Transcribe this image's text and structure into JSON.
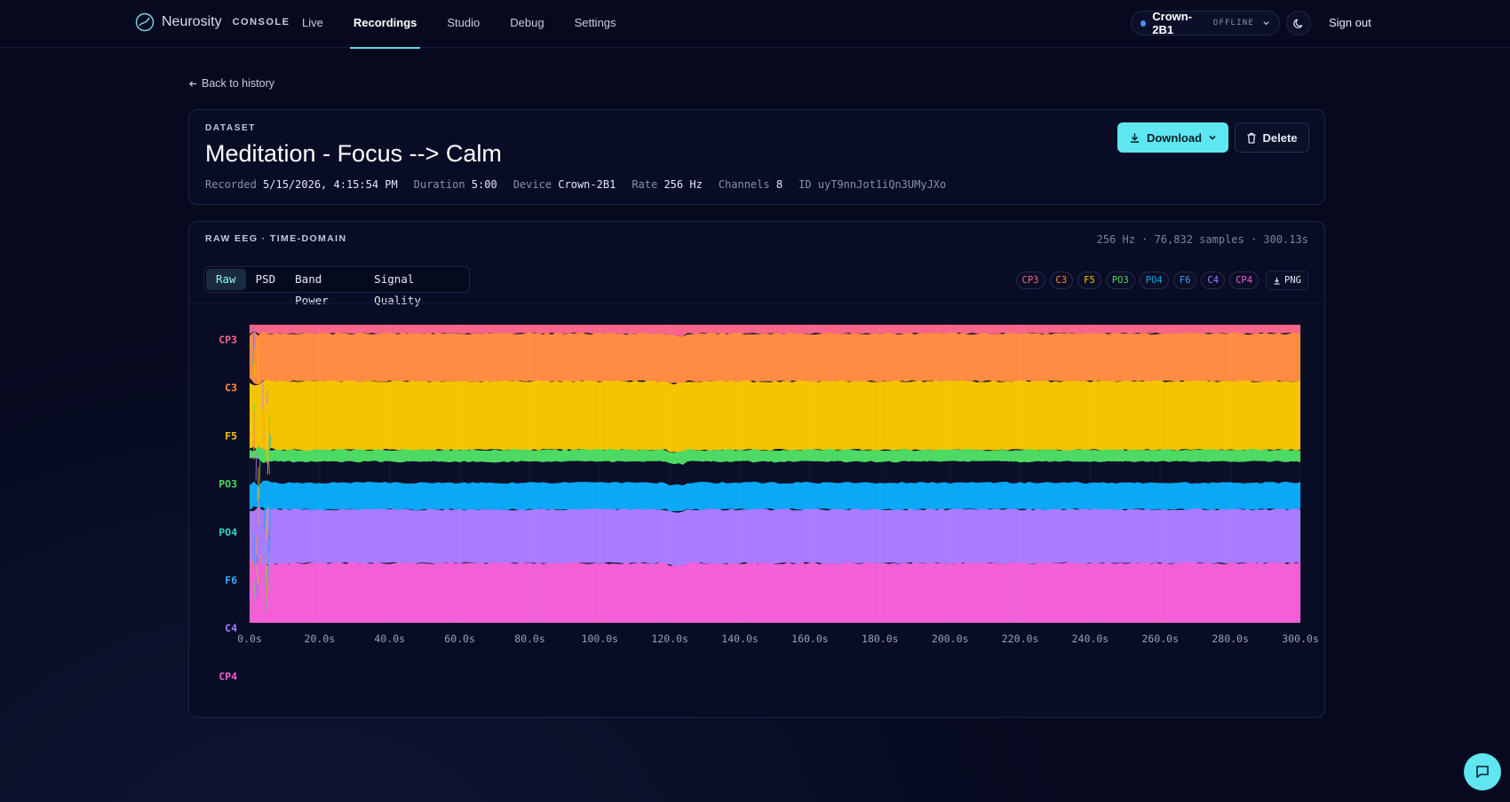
{
  "nav": {
    "brand": "Neurosity",
    "brand_suffix": "CONSOLE",
    "items": [
      {
        "label": "Live",
        "active": false
      },
      {
        "label": "Recordings",
        "active": true
      },
      {
        "label": "Studio",
        "active": false
      },
      {
        "label": "Debug",
        "active": false
      },
      {
        "label": "Settings",
        "active": false
      }
    ],
    "device": {
      "name": "Crown-2B1",
      "status": "OFFLINE"
    },
    "signout": "Sign out"
  },
  "back_link": "Back to history",
  "dataset": {
    "eyebrow": "DATASET",
    "title": "Meditation - Focus --> Calm",
    "meta": {
      "recorded_label": "Recorded",
      "recorded": "5/15/2026, 4:15:54 PM",
      "duration_label": "Duration",
      "duration": "5:00",
      "device_label": "Device",
      "device": "Crown-2B1",
      "rate_label": "Rate",
      "rate": "256 Hz",
      "channels_label": "Channels",
      "channels": "8",
      "id_label": "ID",
      "id": "uyT9nnJot1iQn3UMyJXo"
    },
    "download_label": "Download",
    "delete_label": "Delete"
  },
  "eeg": {
    "heading": "RAW EEG · TIME-DOMAIN",
    "stats": "256 Hz · 76,832 samples · 300.13s",
    "tabs": [
      {
        "label": "Raw",
        "active": true
      },
      {
        "label": "PSD",
        "active": false
      },
      {
        "label": "Band Power",
        "active": false
      },
      {
        "label": "Signal Quality",
        "active": false
      }
    ],
    "png_label": "PNG"
  },
  "chart_data": {
    "type": "area",
    "title": "",
    "xlabel": "",
    "ylabel": "",
    "x_ticks": [
      "0.0s",
      "20.0s",
      "40.0s",
      "60.0s",
      "80.0s",
      "100.0s",
      "120.0s",
      "140.0s",
      "160.0s",
      "180.0s",
      "200.0s",
      "220.0s",
      "240.0s",
      "260.0s",
      "280.0s",
      "300.0s"
    ],
    "xlim": [
      0,
      300
    ],
    "channels": [
      {
        "name": "CP3",
        "color": "#f7658a"
      },
      {
        "name": "C3",
        "color": "#ff8c42"
      },
      {
        "name": "F5",
        "color": "#f5c400"
      },
      {
        "name": "PO3",
        "color": "#4cd964"
      },
      {
        "name": "PO4",
        "color": "#0aa8f5"
      },
      {
        "name": "F6",
        "color": "#3aa7f0"
      },
      {
        "name": "C4",
        "color": "#a97bff"
      },
      {
        "name": "CP4",
        "color": "#f25fd6"
      }
    ],
    "label_colors": [
      "#f7658a",
      "#ff8c42",
      "#f5c400",
      "#4cd964",
      "#2dd4bf",
      "#3aa7f0",
      "#a97bff",
      "#f25fd6"
    ],
    "bands": [
      {
        "channel": "CP3",
        "color": "#f7658a",
        "top": 0.0,
        "bottom": 0.03
      },
      {
        "channel": "C3",
        "color": "#ff8c42",
        "top": 0.03,
        "bottom": 0.19
      },
      {
        "channel": "F5",
        "color": "#f5c400",
        "top": 0.19,
        "bottom": 0.42
      },
      {
        "channel": "PO3",
        "color": "#4cd964",
        "top": 0.42,
        "bottom": 0.46
      },
      {
        "channel": "gap",
        "color": "#0b0f28",
        "top": 0.46,
        "bottom": 0.53
      },
      {
        "channel": "PO4",
        "color": "#0aa8f5",
        "top": 0.53,
        "bottom": 0.62
      },
      {
        "channel": "C4",
        "color": "#a97bff",
        "top": 0.62,
        "bottom": 0.8
      },
      {
        "channel": "CP4",
        "color": "#f25fd6",
        "top": 0.8,
        "bottom": 1.0
      }
    ]
  }
}
